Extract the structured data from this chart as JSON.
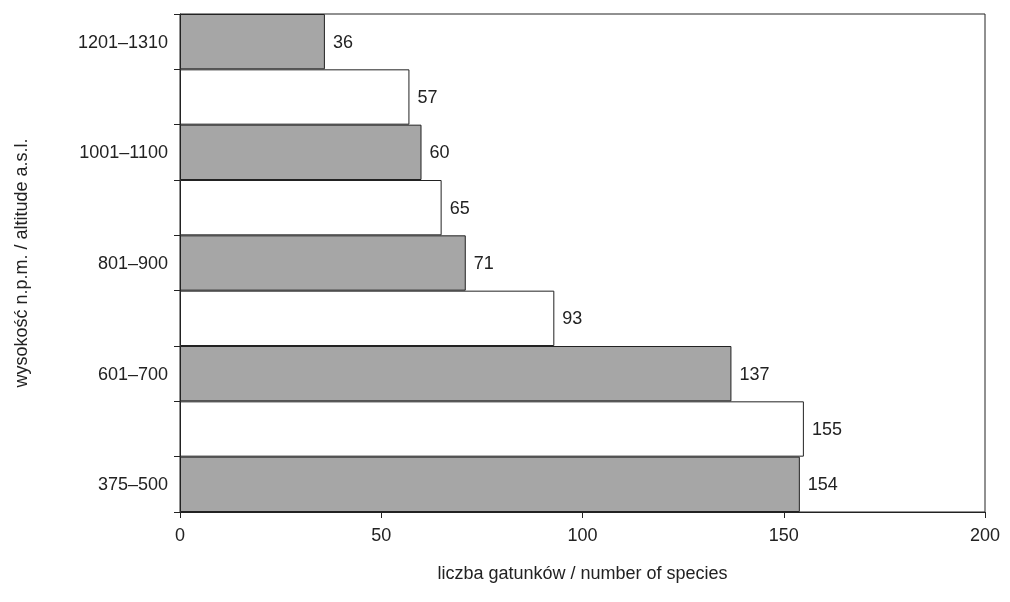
{
  "chart_data": {
    "type": "bar",
    "orientation": "horizontal",
    "xlabel": "liczba gatunków / number of species",
    "ylabel": "wysokość n.p.m. / altitude a.s.l.",
    "categories": [
      "1201–1310",
      null,
      "1001–1100",
      null,
      "801–900",
      null,
      "601–700",
      null,
      "375–500"
    ],
    "values": [
      36,
      57,
      60,
      65,
      71,
      93,
      137,
      155,
      154
    ],
    "colors": [
      "#a6a6a6",
      "#ffffff",
      "#a6a6a6",
      "#ffffff",
      "#a6a6a6",
      "#ffffff",
      "#a6a6a6",
      "#ffffff",
      "#a6a6a6"
    ],
    "xlim": [
      0,
      200
    ],
    "xticks": [
      0,
      50,
      100,
      150,
      200
    ],
    "grid": false,
    "data_labels": true
  }
}
